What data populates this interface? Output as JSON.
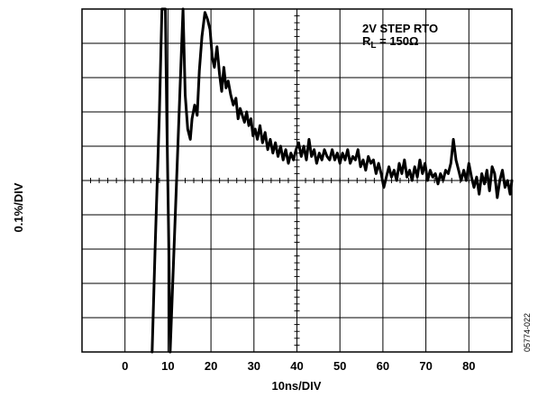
{
  "chart_data": {
    "type": "line",
    "title": "",
    "xlabel": "10ns/DIV",
    "ylabel": "0.1%/DIV",
    "annotation_line1": "2V STEP RTO",
    "annotation_line2_prefix": "R",
    "annotation_line2_sub": "L",
    "annotation_line2_suffix": " = 150Ω",
    "figure_id": "05774-022",
    "xlim": [
      -10,
      90
    ],
    "ylim": [
      -5,
      5
    ],
    "x_ticks": [
      0,
      10,
      20,
      30,
      40,
      50,
      60,
      70,
      80
    ],
    "x_tick_labels": [
      "0",
      "10",
      "20",
      "30",
      "40",
      "50",
      "60",
      "70",
      "80"
    ],
    "grid": true,
    "series": [
      {
        "values": [
          [
            6.3,
            -5
          ],
          [
            7,
            -2
          ],
          [
            8,
            2
          ],
          [
            8.6,
            5
          ],
          [
            9.4,
            5
          ],
          [
            9.7,
            2
          ],
          [
            10.2,
            -2
          ],
          [
            10.5,
            -5
          ],
          [
            13.5,
            5
          ],
          [
            14,
            2.5
          ],
          [
            14.6,
            1.5
          ],
          [
            15.2,
            1.2
          ],
          [
            15.6,
            1.8
          ],
          [
            16.2,
            2.2
          ],
          [
            16.8,
            1.9
          ],
          [
            17.3,
            3.2
          ],
          [
            17.9,
            4.2
          ],
          [
            18.6,
            4.9
          ],
          [
            19.2,
            4.7
          ],
          [
            19.8,
            4.4
          ],
          [
            20.3,
            3.6
          ],
          [
            20.8,
            3.3
          ],
          [
            21.4,
            3.9
          ],
          [
            22,
            3.1
          ],
          [
            22.5,
            2.6
          ],
          [
            23,
            3.3
          ],
          [
            23.5,
            2.7
          ],
          [
            24,
            2.9
          ],
          [
            24.6,
            2.5
          ],
          [
            25.2,
            2.2
          ],
          [
            25.8,
            2.4
          ],
          [
            26.3,
            1.8
          ],
          [
            26.8,
            2.1
          ],
          [
            27.3,
            1.9
          ],
          [
            27.8,
            1.7
          ],
          [
            28.3,
            2.0
          ],
          [
            28.8,
            1.6
          ],
          [
            29.3,
            1.8
          ],
          [
            29.8,
            1.3
          ],
          [
            30.3,
            1.5
          ],
          [
            30.8,
            1.2
          ],
          [
            31.4,
            1.6
          ],
          [
            32,
            1.1
          ],
          [
            32.6,
            1.4
          ],
          [
            33.2,
            0.9
          ],
          [
            33.8,
            1.2
          ],
          [
            34.4,
            0.8
          ],
          [
            35,
            1.1
          ],
          [
            35.6,
            0.7
          ],
          [
            36.2,
            1.0
          ],
          [
            36.8,
            0.6
          ],
          [
            37.4,
            0.9
          ],
          [
            38,
            0.5
          ],
          [
            38.6,
            0.8
          ],
          [
            39.2,
            0.6
          ],
          [
            39.8,
            0.9
          ],
          [
            40.4,
            1.1
          ],
          [
            41,
            0.7
          ],
          [
            41.6,
            1.0
          ],
          [
            42.2,
            0.6
          ],
          [
            42.8,
            1.2
          ],
          [
            43.4,
            0.7
          ],
          [
            44,
            0.9
          ],
          [
            44.6,
            0.5
          ],
          [
            45.2,
            0.8
          ],
          [
            45.8,
            0.6
          ],
          [
            46.4,
            0.9
          ],
          [
            47,
            0.7
          ],
          [
            47.6,
            0.6
          ],
          [
            48.2,
            0.9
          ],
          [
            48.8,
            0.6
          ],
          [
            49.4,
            0.8
          ],
          [
            50,
            0.5
          ],
          [
            50.6,
            0.8
          ],
          [
            51.2,
            0.6
          ],
          [
            51.8,
            0.9
          ],
          [
            52.4,
            0.5
          ],
          [
            53,
            0.7
          ],
          [
            53.6,
            0.6
          ],
          [
            54.2,
            0.9
          ],
          [
            54.8,
            0.4
          ],
          [
            55.4,
            0.6
          ],
          [
            56,
            0.3
          ],
          [
            56.6,
            0.7
          ],
          [
            57.2,
            0.5
          ],
          [
            57.8,
            0.6
          ],
          [
            58.4,
            0.2
          ],
          [
            59,
            0.5
          ],
          [
            59.6,
            0.2
          ],
          [
            60.2,
            -0.2
          ],
          [
            60.8,
            0.1
          ],
          [
            61.4,
            0.4
          ],
          [
            62,
            0.1
          ],
          [
            62.6,
            0.3
          ],
          [
            63.2,
            0.0
          ],
          [
            63.8,
            0.5
          ],
          [
            64.4,
            0.2
          ],
          [
            65,
            0.6
          ],
          [
            65.6,
            0.1
          ],
          [
            66.2,
            0.3
          ],
          [
            66.8,
            0.0
          ],
          [
            67.4,
            0.4
          ],
          [
            68,
            0.1
          ],
          [
            68.6,
            0.6
          ],
          [
            69.2,
            0.2
          ],
          [
            69.8,
            0.5
          ],
          [
            70.4,
            0.0
          ],
          [
            71,
            0.3
          ],
          [
            71.6,
            0.1
          ],
          [
            72.2,
            0.2
          ],
          [
            72.8,
            -0.1
          ],
          [
            73.4,
            0.2
          ],
          [
            74,
            0.0
          ],
          [
            74.6,
            0.3
          ],
          [
            75.2,
            0.2
          ],
          [
            75.8,
            0.5
          ],
          [
            76.4,
            1.2
          ],
          [
            77,
            0.6
          ],
          [
            77.6,
            0.3
          ],
          [
            78.2,
            0.0
          ],
          [
            78.8,
            0.3
          ],
          [
            79.4,
            0.0
          ],
          [
            80,
            0.5
          ],
          [
            80.6,
            0.1
          ],
          [
            81.2,
            -0.2
          ],
          [
            81.8,
            0.1
          ],
          [
            82.4,
            -0.4
          ],
          [
            83,
            0.2
          ],
          [
            83.6,
            -0.1
          ],
          [
            84.2,
            0.3
          ],
          [
            84.8,
            -0.3
          ],
          [
            85.4,
            0.4
          ],
          [
            86,
            0.2
          ],
          [
            86.6,
            -0.5
          ],
          [
            87.2,
            0.0
          ],
          [
            87.8,
            0.3
          ],
          [
            88.4,
            -0.2
          ],
          [
            89,
            0.0
          ],
          [
            89.6,
            -0.4
          ],
          [
            90,
            0.0
          ]
        ]
      }
    ]
  }
}
